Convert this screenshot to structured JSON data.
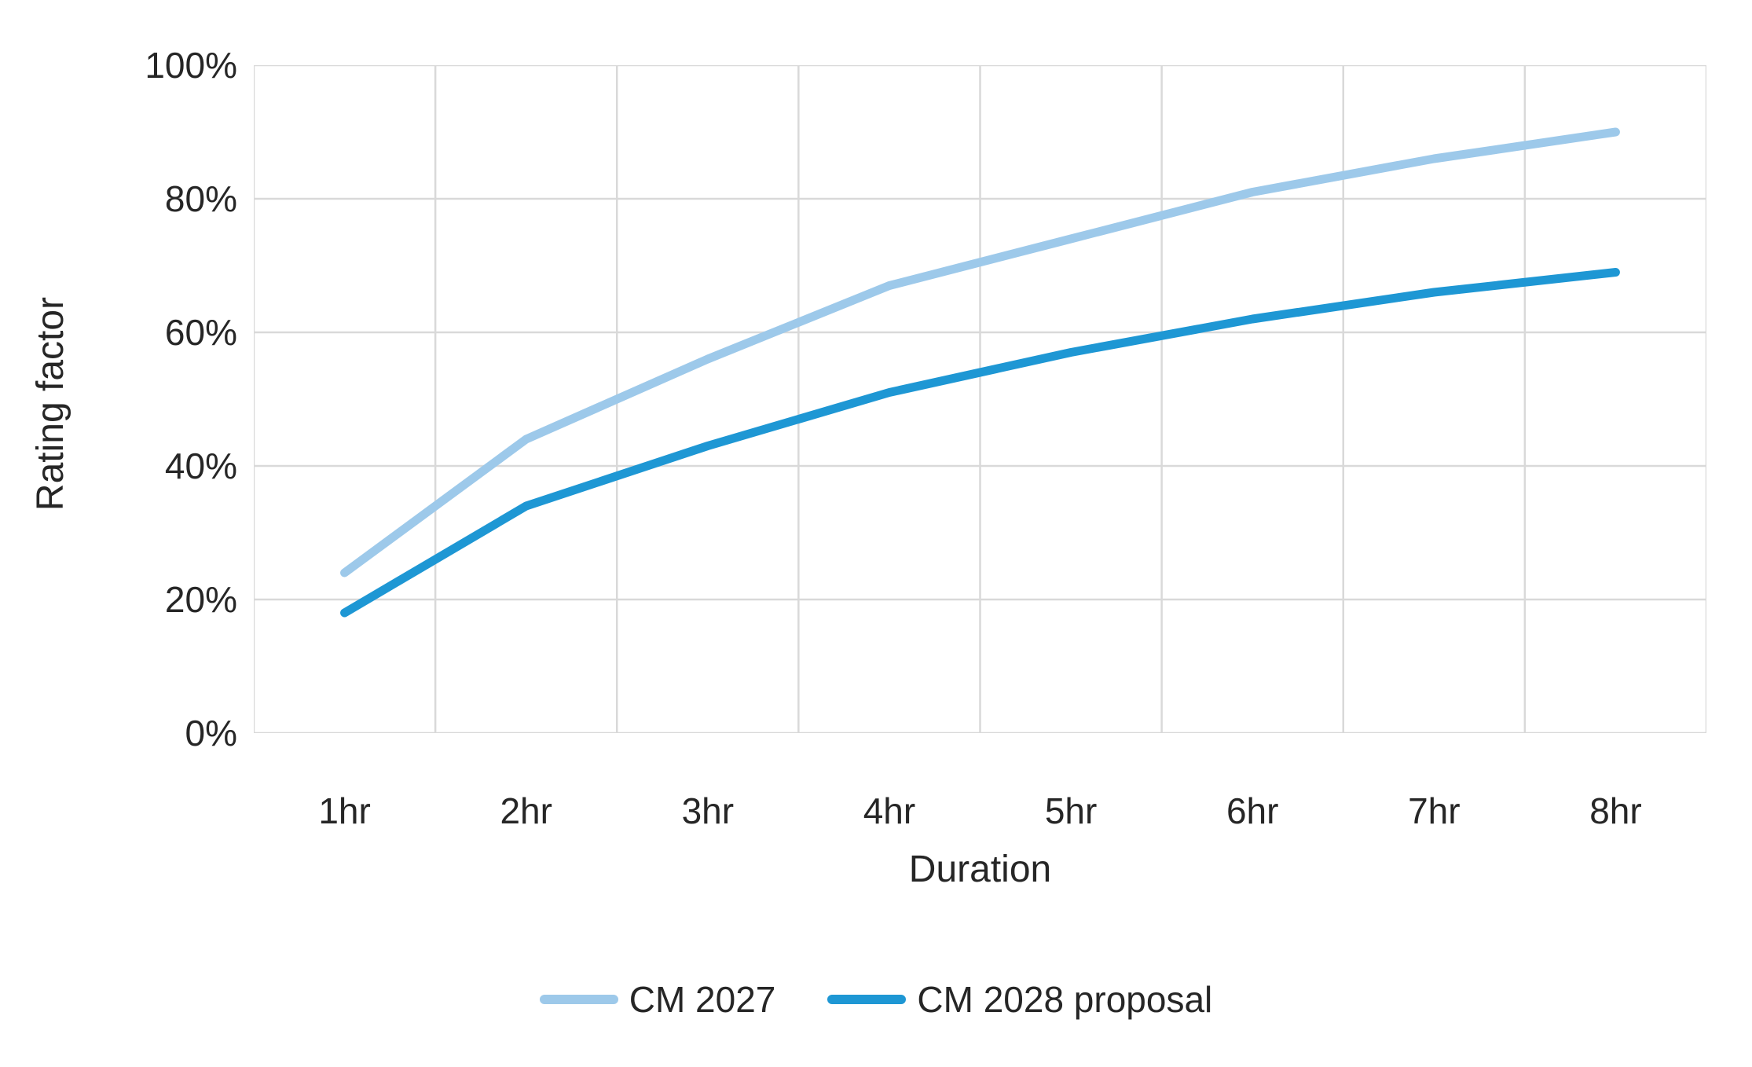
{
  "chart_data": {
    "type": "line",
    "categories": [
      "1hr",
      "2hr",
      "3hr",
      "4hr",
      "5hr",
      "6hr",
      "7hr",
      "8hr"
    ],
    "series": [
      {
        "name": "CM 2027",
        "color": "#9dc9ea",
        "values": [
          24,
          44,
          56,
          67,
          74,
          81,
          86,
          90
        ]
      },
      {
        "name": "CM 2028 proposal",
        "color": "#1e97d4",
        "values": [
          18,
          34,
          43,
          51,
          57,
          62,
          66,
          69
        ]
      }
    ],
    "title": "",
    "xlabel": "Duration",
    "ylabel": "Rating factor",
    "ylim": [
      0,
      100
    ],
    "ytick_step": 20,
    "ytick_labels": [
      "0%",
      "20%",
      "40%",
      "60%",
      "80%",
      "100%"
    ],
    "value_unit": "%",
    "grid": true,
    "legend_position": "bottom-center",
    "gridline_color": "#d9d9d9",
    "text_color": "#262626",
    "background_color": "#ffffff",
    "line_width": 11
  }
}
